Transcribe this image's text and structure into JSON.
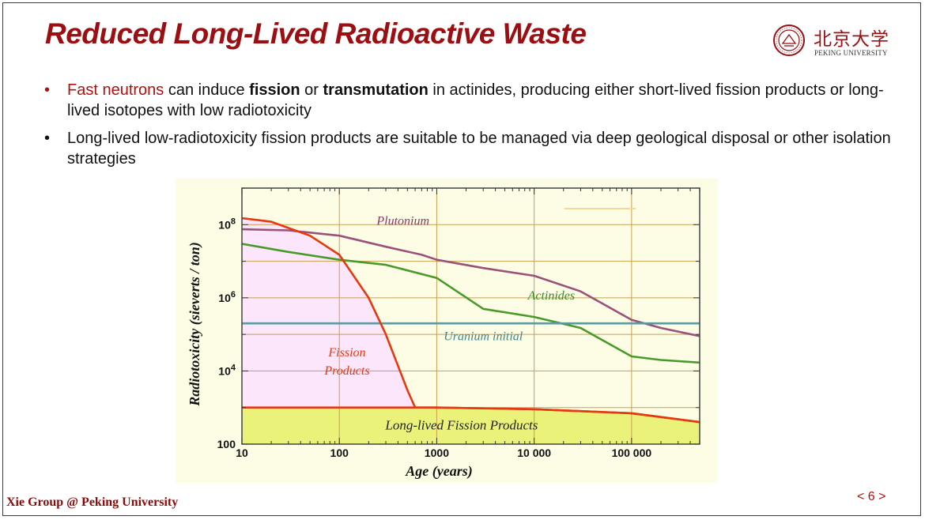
{
  "slide": {
    "title": "Reduced Long-Lived Radioactive Waste",
    "logo": {
      "cn": "北京大学",
      "en": "PEKING UNIVERSITY"
    },
    "bullets": [
      {
        "highlight": "Fast neutrons",
        "t1": " can induce ",
        "b1": "fission",
        "t2": " or ",
        "b2": "transmutation",
        "t3": " in actinides, producing either short-lived fission products or long-lived isotopes with low radiotoxicity"
      },
      {
        "text": "Long-lived low-radiotoxicity fission products are suitable to be managed via deep geological disposal or other isolation strategies"
      }
    ],
    "footer": "Xie Group @ Peking University",
    "page_number": "< 6 >"
  },
  "colors": {
    "accent": "#9b0f12",
    "plot_bg": "#fdfde6",
    "fission_fill": "#fbe6fb",
    "longlived_fill": "#eaf27a",
    "grid": "#c8a050"
  },
  "chart_data": {
    "type": "line",
    "xscale": "log",
    "yscale": "log",
    "xlim": [
      10,
      500000
    ],
    "ylim": [
      100,
      1000000000
    ],
    "xlabel": "Age (years)",
    "ylabel": "Radiotoxicity  (sieverts / ton)",
    "xticks": [
      {
        "v": 10,
        "label": "10"
      },
      {
        "v": 100,
        "label": "100"
      },
      {
        "v": 1000,
        "label": "1000"
      },
      {
        "v": 10000,
        "label": "10 000"
      },
      {
        "v": 100000,
        "label": "100 000"
      }
    ],
    "yticks": [
      {
        "v": 100,
        "base": "100",
        "exp": ""
      },
      {
        "v": 10000,
        "base": "10",
        "exp": "4"
      },
      {
        "v": 1000000,
        "base": "10",
        "exp": "6"
      },
      {
        "v": 100000000,
        "base": "10",
        "exp": "8"
      }
    ],
    "grid": true,
    "series": [
      {
        "name": "Plutonium",
        "color": "#9a527a",
        "points": [
          [
            10,
            75000000
          ],
          [
            30,
            70000000
          ],
          [
            100,
            50000000
          ],
          [
            300,
            25000000
          ],
          [
            700,
            15000000
          ],
          [
            1000,
            11000000
          ],
          [
            3000,
            6500000
          ],
          [
            10000,
            4000000
          ],
          [
            30000,
            1500000
          ],
          [
            100000,
            250000
          ],
          [
            200000,
            150000
          ],
          [
            500000,
            90000
          ]
        ]
      },
      {
        "name": "Actinides",
        "color": "#4a9a2a",
        "points": [
          [
            10,
            30000000
          ],
          [
            30,
            18000000
          ],
          [
            100,
            11000000
          ],
          [
            300,
            8000000
          ],
          [
            1000,
            3500000
          ],
          [
            3000,
            500000
          ],
          [
            10000,
            300000
          ],
          [
            30000,
            150000
          ],
          [
            100000,
            25000
          ],
          [
            200000,
            20000
          ],
          [
            500000,
            17000
          ]
        ]
      },
      {
        "name": "Uranium initial",
        "color": "#5a9aa0",
        "points": [
          [
            10,
            200000
          ],
          [
            500000,
            200000
          ]
        ]
      },
      {
        "name": "Fission Products",
        "color": "#e43a10",
        "points": [
          [
            10,
            150000000
          ],
          [
            20,
            120000000
          ],
          [
            50,
            50000000
          ],
          [
            100,
            15000000
          ],
          [
            200,
            1000000
          ],
          [
            300,
            100000
          ],
          [
            500,
            3000
          ],
          [
            600,
            1000
          ],
          [
            1000,
            1000
          ],
          [
            10000,
            900
          ],
          [
            100000,
            700
          ],
          [
            500000,
            400
          ]
        ]
      },
      {
        "name": "Long-lived Fission Products",
        "color": "#e43a10",
        "points": [
          [
            10,
            1000
          ],
          [
            1000,
            1000
          ],
          [
            10000,
            900
          ],
          [
            100000,
            700
          ],
          [
            500000,
            400
          ]
        ]
      }
    ],
    "annotations": [
      {
        "text": "Plutonium",
        "x": 450,
        "y": 100000000,
        "color": "#8a3a6a"
      },
      {
        "text": "Actinides",
        "x": 15000,
        "y": 900000,
        "color": "#3a8a2a"
      },
      {
        "text": "Uranium initial",
        "x": 3000,
        "y": 70000,
        "color": "#3a8a90"
      },
      {
        "text": "Fission",
        "x": 120,
        "y": 25000,
        "color": "#e43a10"
      },
      {
        "text": "Products",
        "x": 120,
        "y": 8000,
        "color": "#e43a10"
      },
      {
        "text": "Long-lived Fission Products",
        "x": 1800,
        "y": 250,
        "color": "#222222"
      }
    ]
  }
}
